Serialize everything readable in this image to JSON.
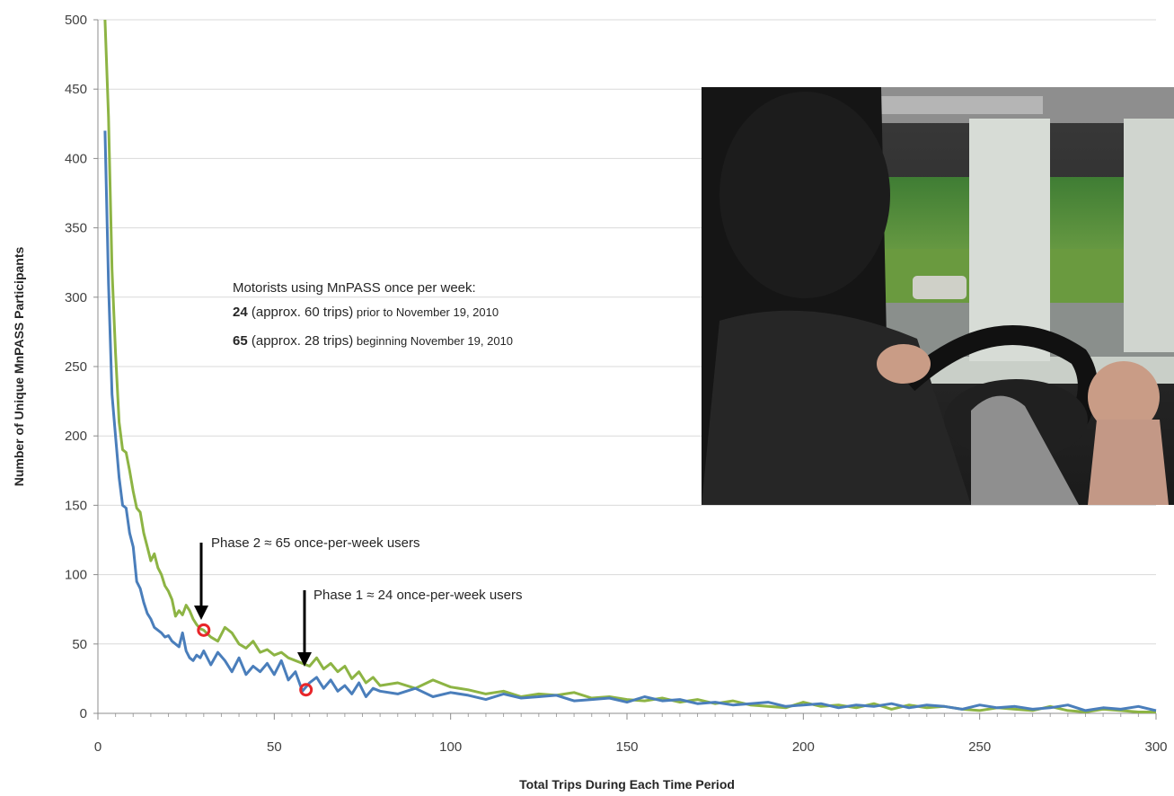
{
  "chart_data": {
    "type": "line",
    "title": "",
    "xlabel": "Total Trips During Each Time Period",
    "ylabel": "Number of Unique MnPASS Participants",
    "xlim": [
      0,
      300
    ],
    "ylim": [
      0,
      500
    ],
    "xticks": [
      "0",
      "50",
      "100",
      "150",
      "200",
      "250",
      "300"
    ],
    "yticks": [
      "0",
      "50",
      "100",
      "150",
      "200",
      "250",
      "300",
      "350",
      "400",
      "450",
      "500"
    ],
    "grid": true,
    "legend": "none",
    "colors": {
      "blue": "#4a7ebb",
      "green": "#8db444",
      "marker": "#e8262a",
      "arrow": "#000000"
    },
    "series": [
      {
        "color": "#8db444",
        "x": [
          2,
          3,
          4,
          5,
          6,
          7,
          8,
          9,
          10,
          11,
          12,
          13,
          14,
          15,
          16,
          17,
          18,
          19,
          20,
          21,
          22,
          23,
          24,
          25,
          26,
          27,
          28,
          29,
          30,
          32,
          34,
          36,
          38,
          40,
          42,
          44,
          46,
          48,
          50,
          52,
          54,
          56,
          58,
          60,
          62,
          64,
          66,
          68,
          70,
          72,
          74,
          76,
          78,
          80,
          85,
          90,
          95,
          100,
          105,
          110,
          115,
          120,
          125,
          130,
          135,
          140,
          145,
          150,
          155,
          160,
          165,
          170,
          175,
          180,
          185,
          190,
          195,
          200,
          205,
          210,
          215,
          220,
          225,
          230,
          235,
          240,
          245,
          250,
          255,
          260,
          265,
          270,
          275,
          280,
          285,
          290,
          295,
          300
        ],
        "y": [
          500,
          430,
          320,
          260,
          210,
          190,
          188,
          175,
          160,
          148,
          145,
          130,
          120,
          110,
          115,
          105,
          100,
          92,
          88,
          82,
          70,
          74,
          71,
          78,
          74,
          68,
          64,
          61,
          60,
          55,
          52,
          62,
          58,
          50,
          47,
          52,
          44,
          46,
          42,
          44,
          40,
          38,
          36,
          34,
          40,
          32,
          36,
          30,
          34,
          25,
          30,
          22,
          26,
          20,
          22,
          18,
          24,
          19,
          17,
          14,
          16,
          12,
          14,
          13,
          15,
          11,
          12,
          10,
          9,
          11,
          8,
          10,
          7,
          9,
          6,
          5,
          4,
          8,
          5,
          6,
          4,
          7,
          3,
          6,
          4,
          5,
          3,
          2,
          4,
          3,
          2,
          5,
          2,
          1,
          3,
          2,
          1,
          1
        ]
      },
      {
        "color": "#4a7ebb",
        "x": [
          2,
          3,
          4,
          5,
          6,
          7,
          8,
          9,
          10,
          11,
          12,
          13,
          14,
          15,
          16,
          17,
          18,
          19,
          20,
          21,
          22,
          23,
          24,
          25,
          26,
          27,
          28,
          29,
          30,
          32,
          34,
          36,
          38,
          40,
          42,
          44,
          46,
          48,
          50,
          52,
          54,
          56,
          58,
          60,
          62,
          64,
          66,
          68,
          70,
          72,
          74,
          76,
          78,
          80,
          85,
          90,
          95,
          100,
          105,
          110,
          115,
          120,
          125,
          130,
          135,
          140,
          145,
          150,
          155,
          160,
          165,
          170,
          175,
          180,
          185,
          190,
          195,
          200,
          205,
          210,
          215,
          220,
          225,
          230,
          235,
          240,
          245,
          250,
          255,
          260,
          265,
          270,
          275,
          280,
          285,
          290,
          295,
          300
        ],
        "y": [
          420,
          310,
          230,
          200,
          170,
          150,
          148,
          130,
          120,
          95,
          90,
          80,
          72,
          68,
          62,
          60,
          58,
          55,
          56,
          52,
          50,
          48,
          58,
          45,
          40,
          38,
          42,
          40,
          45,
          35,
          44,
          38,
          30,
          40,
          28,
          34,
          30,
          36,
          28,
          38,
          24,
          30,
          16,
          22,
          26,
          18,
          24,
          16,
          20,
          14,
          22,
          12,
          18,
          16,
          14,
          18,
          12,
          15,
          13,
          10,
          14,
          11,
          12,
          13,
          9,
          10,
          11,
          8,
          12,
          9,
          10,
          7,
          8,
          6,
          7,
          8,
          5,
          6,
          7,
          4,
          6,
          5,
          7,
          4,
          6,
          5,
          3,
          6,
          4,
          5,
          3,
          4,
          6,
          2,
          4,
          3,
          5,
          2
        ]
      }
    ],
    "annotations": {
      "box_title": "Motorists using MnPASS once per week:",
      "line1_bold": "24",
      "line1_mid": " (approx. 60 trips)",
      "line1_small": " prior to November 19, 2010",
      "line2_bold": "65",
      "line2_mid": " (approx. 28 trips)",
      "line2_small": " beginning November 19, 2010",
      "phase2": "Phase 2 ≈ 65 once-per-week users",
      "phase1": "Phase 1 ≈ 24 once-per-week users"
    },
    "markers": [
      {
        "x": 30,
        "y": 60
      },
      {
        "x": 59,
        "y": 17
      }
    ]
  }
}
